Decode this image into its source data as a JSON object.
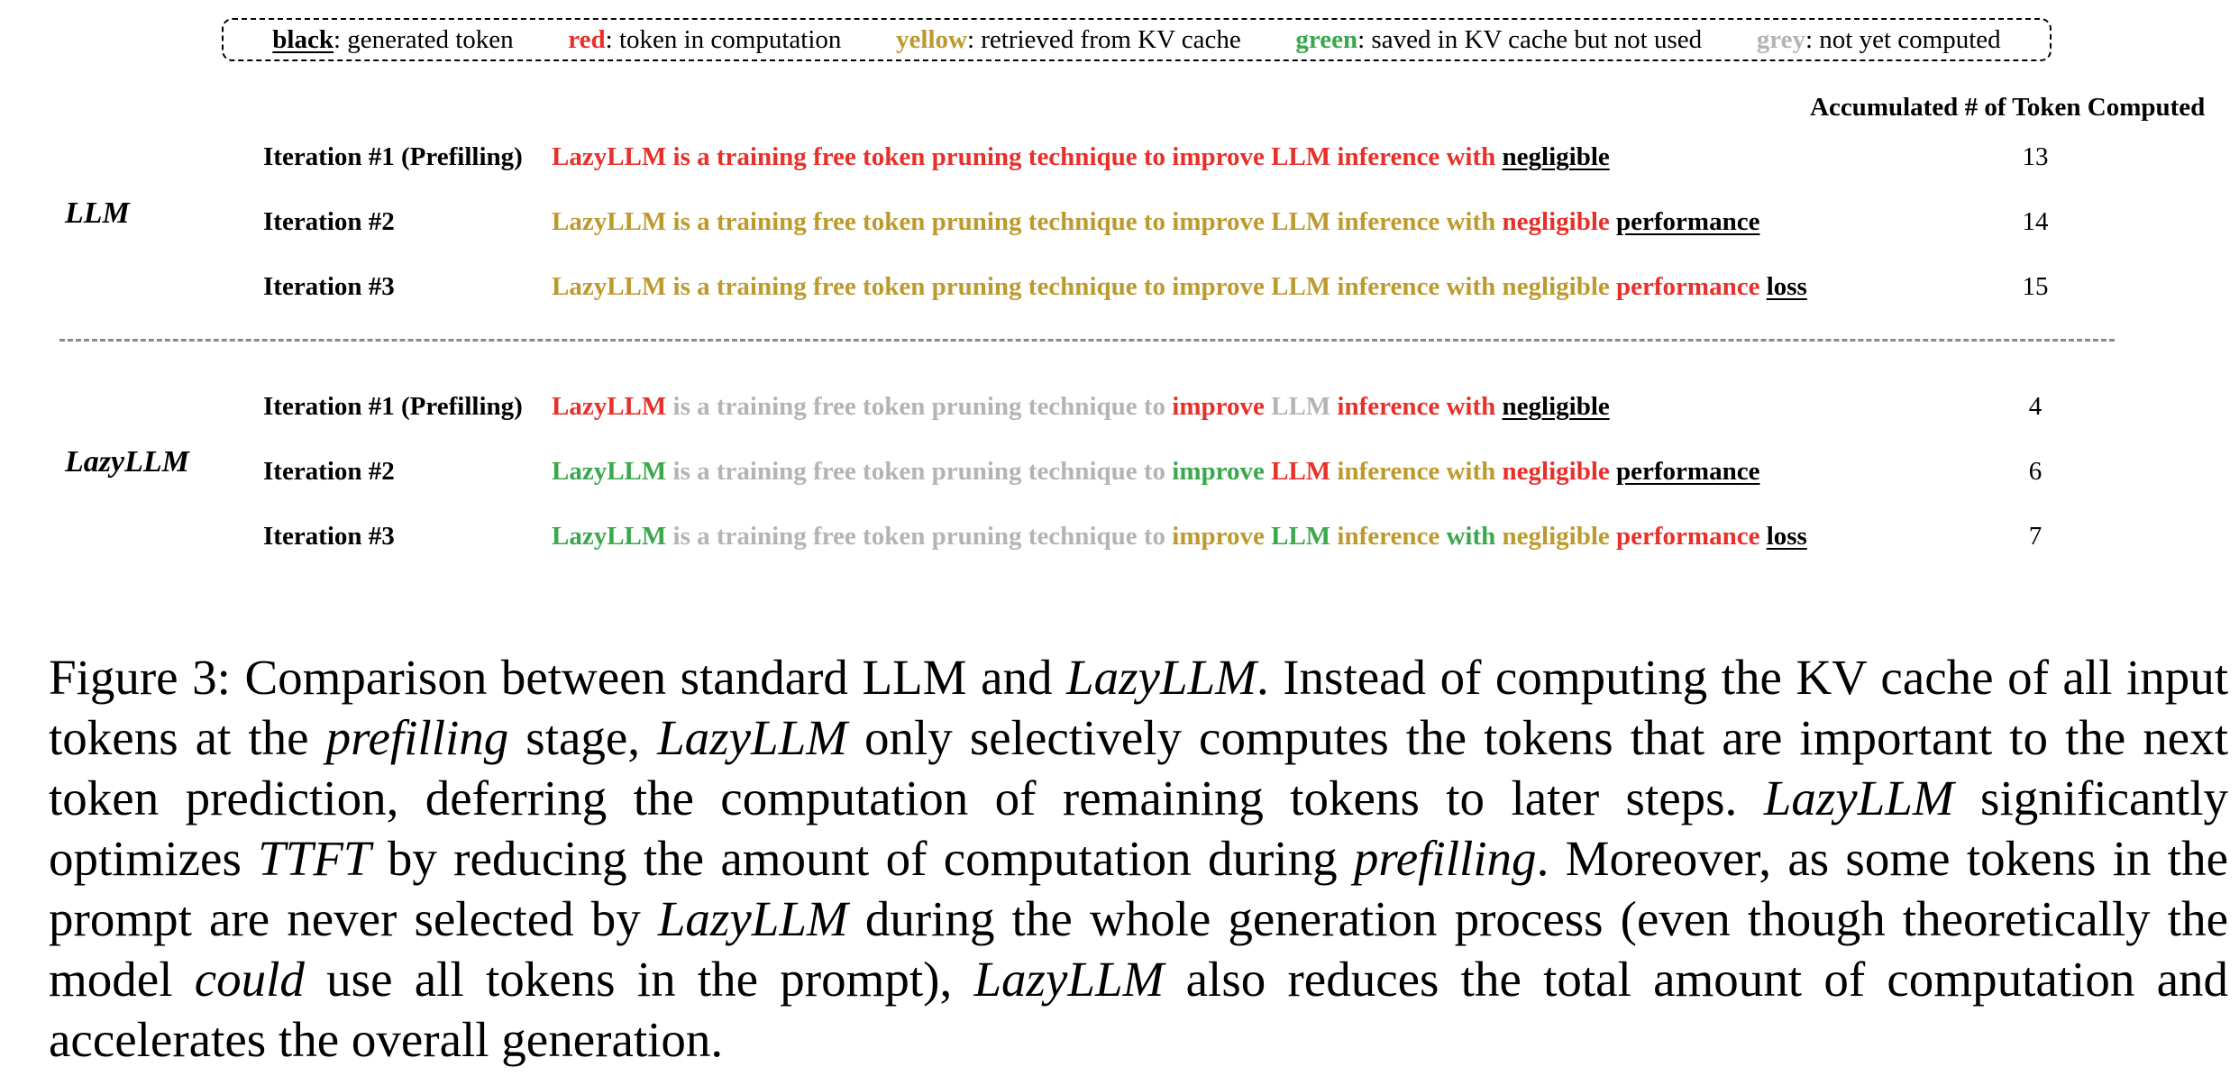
{
  "legend": [
    {
      "key": "black",
      "desc": ": generated token",
      "color": "black",
      "underline": true
    },
    {
      "key": "red",
      "desc": ": token in computation",
      "color": "red",
      "underline": false
    },
    {
      "key": "yellow",
      "desc": ": retrieved from KV cache",
      "color": "yellow",
      "underline": false
    },
    {
      "key": "green",
      "desc": ": saved in KV cache but not used",
      "color": "green",
      "underline": false
    },
    {
      "key": "grey",
      "desc": ": not yet computed",
      "color": "grey",
      "underline": false
    }
  ],
  "colors": {
    "black": "#000000",
    "red": "#e8302a",
    "yellow": "#bd9a2e",
    "green": "#3aa84c",
    "grey": "#b4b4b4"
  },
  "count_header": "Accumulated # of Token Computed",
  "sections": [
    {
      "label": "LLM",
      "rows": [
        {
          "iteration": "Iteration #1 (Prefilling)",
          "count": "13",
          "tokens": [
            {
              "text": "LazyLLM",
              "color": "red"
            },
            {
              "text": "is",
              "color": "red"
            },
            {
              "text": "a",
              "color": "red"
            },
            {
              "text": "training",
              "color": "red"
            },
            {
              "text": "free",
              "color": "red"
            },
            {
              "text": "token",
              "color": "red"
            },
            {
              "text": "pruning",
              "color": "red"
            },
            {
              "text": "technique",
              "color": "red"
            },
            {
              "text": "to",
              "color": "red"
            },
            {
              "text": "improve",
              "color": "red"
            },
            {
              "text": "LLM",
              "color": "red"
            },
            {
              "text": "inference",
              "color": "red"
            },
            {
              "text": "with",
              "color": "red"
            },
            {
              "text": "negligible",
              "color": "black",
              "underline": true
            }
          ]
        },
        {
          "iteration": "Iteration #2",
          "count": "14",
          "tokens": [
            {
              "text": "LazyLLM",
              "color": "yellow"
            },
            {
              "text": "is",
              "color": "yellow"
            },
            {
              "text": "a",
              "color": "yellow"
            },
            {
              "text": "training",
              "color": "yellow"
            },
            {
              "text": "free",
              "color": "yellow"
            },
            {
              "text": "token",
              "color": "yellow"
            },
            {
              "text": "pruning",
              "color": "yellow"
            },
            {
              "text": "technique",
              "color": "yellow"
            },
            {
              "text": "to",
              "color": "yellow"
            },
            {
              "text": "improve",
              "color": "yellow"
            },
            {
              "text": "LLM",
              "color": "yellow"
            },
            {
              "text": "inference",
              "color": "yellow"
            },
            {
              "text": "with",
              "color": "yellow"
            },
            {
              "text": "negligible",
              "color": "red"
            },
            {
              "text": "performance",
              "color": "black",
              "underline": true
            }
          ]
        },
        {
          "iteration": "Iteration #3",
          "count": "15",
          "tokens": [
            {
              "text": "LazyLLM",
              "color": "yellow"
            },
            {
              "text": "is",
              "color": "yellow"
            },
            {
              "text": "a",
              "color": "yellow"
            },
            {
              "text": "training",
              "color": "yellow"
            },
            {
              "text": "free",
              "color": "yellow"
            },
            {
              "text": "token",
              "color": "yellow"
            },
            {
              "text": "pruning",
              "color": "yellow"
            },
            {
              "text": "technique",
              "color": "yellow"
            },
            {
              "text": "to",
              "color": "yellow"
            },
            {
              "text": "improve",
              "color": "yellow"
            },
            {
              "text": "LLM",
              "color": "yellow"
            },
            {
              "text": "inference",
              "color": "yellow"
            },
            {
              "text": "with",
              "color": "yellow"
            },
            {
              "text": "negligible",
              "color": "yellow"
            },
            {
              "text": "performance",
              "color": "red"
            },
            {
              "text": "loss",
              "color": "black",
              "underline": true
            }
          ]
        }
      ]
    },
    {
      "label": "LazyLLM",
      "rows": [
        {
          "iteration": "Iteration #1 (Prefilling)",
          "count": "4",
          "tokens": [
            {
              "text": "LazyLLM",
              "color": "red"
            },
            {
              "text": "is",
              "color": "grey"
            },
            {
              "text": "a",
              "color": "grey"
            },
            {
              "text": "training",
              "color": "grey"
            },
            {
              "text": "free",
              "color": "grey"
            },
            {
              "text": "token",
              "color": "grey"
            },
            {
              "text": "pruning",
              "color": "grey"
            },
            {
              "text": "technique",
              "color": "grey"
            },
            {
              "text": "to",
              "color": "grey"
            },
            {
              "text": "improve",
              "color": "red"
            },
            {
              "text": "LLM",
              "color": "grey"
            },
            {
              "text": "inference",
              "color": "red"
            },
            {
              "text": "with",
              "color": "red"
            },
            {
              "text": "negligible",
              "color": "black",
              "underline": true
            }
          ]
        },
        {
          "iteration": "Iteration #2",
          "count": "6",
          "tokens": [
            {
              "text": "LazyLLM",
              "color": "green"
            },
            {
              "text": "is",
              "color": "grey"
            },
            {
              "text": "a",
              "color": "grey"
            },
            {
              "text": "training",
              "color": "grey"
            },
            {
              "text": "free",
              "color": "grey"
            },
            {
              "text": "token",
              "color": "grey"
            },
            {
              "text": "pruning",
              "color": "grey"
            },
            {
              "text": "technique",
              "color": "grey"
            },
            {
              "text": "to",
              "color": "grey"
            },
            {
              "text": "improve",
              "color": "green"
            },
            {
              "text": "LLM",
              "color": "red"
            },
            {
              "text": "inference",
              "color": "yellow"
            },
            {
              "text": "with",
              "color": "yellow"
            },
            {
              "text": "negligible",
              "color": "red"
            },
            {
              "text": "performance",
              "color": "black",
              "underline": true
            }
          ]
        },
        {
          "iteration": "Iteration #3",
          "count": "7",
          "tokens": [
            {
              "text": "LazyLLM",
              "color": "green"
            },
            {
              "text": "is",
              "color": "grey"
            },
            {
              "text": "a",
              "color": "grey"
            },
            {
              "text": "training",
              "color": "grey"
            },
            {
              "text": "free",
              "color": "grey"
            },
            {
              "text": "token",
              "color": "grey"
            },
            {
              "text": "pruning",
              "color": "grey"
            },
            {
              "text": "technique",
              "color": "grey"
            },
            {
              "text": "to",
              "color": "grey"
            },
            {
              "text": "improve",
              "color": "yellow"
            },
            {
              "text": "LLM",
              "color": "green"
            },
            {
              "text": "inference",
              "color": "yellow"
            },
            {
              "text": "with",
              "color": "green"
            },
            {
              "text": "negligible",
              "color": "yellow"
            },
            {
              "text": "performance",
              "color": "red"
            },
            {
              "text": "loss",
              "color": "black",
              "underline": true
            }
          ]
        }
      ]
    }
  ],
  "caption": [
    {
      "text": "Figure 3: Comparison between standard LLM and ",
      "italic": false
    },
    {
      "text": "LazyLLM",
      "italic": true
    },
    {
      "text": ". Instead of computing the KV cache of all input tokens at the ",
      "italic": false
    },
    {
      "text": "prefilling",
      "italic": true
    },
    {
      "text": " stage, ",
      "italic": false
    },
    {
      "text": "LazyLLM",
      "italic": true
    },
    {
      "text": " only selectively computes the tokens that are important to the next token prediction, deferring the computation of remaining tokens to later steps. ",
      "italic": false
    },
    {
      "text": "LazyLLM",
      "italic": true
    },
    {
      "text": " significantly optimizes ",
      "italic": false
    },
    {
      "text": "TTFT",
      "italic": true
    },
    {
      "text": " by reducing the amount of computation during ",
      "italic": false
    },
    {
      "text": "prefilling",
      "italic": true
    },
    {
      "text": ". Moreover, as some tokens in the prompt are never selected by ",
      "italic": false
    },
    {
      "text": "LazyLLM",
      "italic": true
    },
    {
      "text": " during the whole generation process (even though theoretically the model ",
      "italic": false
    },
    {
      "text": "could",
      "italic": true
    },
    {
      "text": " use all tokens in the prompt), ",
      "italic": false
    },
    {
      "text": "LazyLLM",
      "italic": true
    },
    {
      "text": " also reduces the total amount of computation and accelerates the overall generation.",
      "italic": false
    }
  ]
}
